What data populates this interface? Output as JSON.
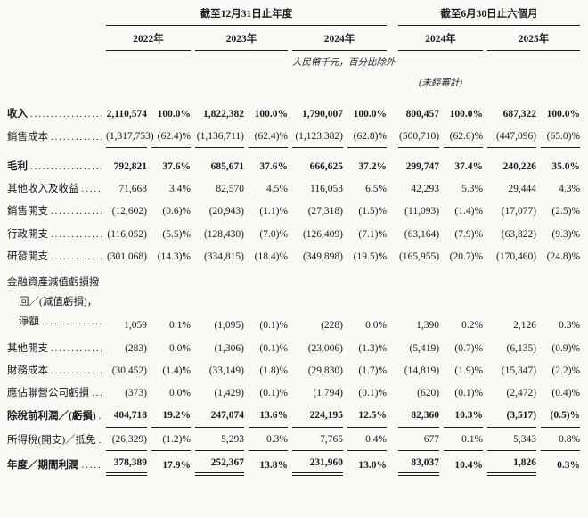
{
  "table": {
    "header": {
      "annual": {
        "title": "截至12月31日止年度",
        "years": [
          "2022年",
          "2023年",
          "2024年"
        ]
      },
      "interim": {
        "title": "截至6月30日止六個月",
        "years": [
          "2024年",
          "2025年"
        ]
      },
      "unit_note": "人民幣千元，百分比除外",
      "unaudited_note": "(未經審計)"
    },
    "column_keys": [
      "fy2022",
      "fy2022_pct",
      "fy2023",
      "fy2023_pct",
      "fy2024",
      "fy2024_pct",
      "h1_2024",
      "h1_2024_pct",
      "h1_2025",
      "h1_2025_pct"
    ],
    "rows": [
      {
        "id": "revenue",
        "label": "收入",
        "bold": true,
        "leader": true,
        "rule": "none",
        "values": [
          "2,110,574",
          "100.0%",
          "1,822,382",
          "100.0%",
          "1,790,007",
          "100.0%",
          "800,457",
          "100.0%",
          "687,322",
          "100.0%"
        ]
      },
      {
        "id": "cost-of-sales",
        "label": "銷售成本",
        "bold": false,
        "leader": true,
        "rule": "single",
        "values": [
          "(1,317,753)",
          "(62.4)%",
          "(1,136,711)",
          "(62.4)%",
          "(1,123,382)",
          "(62.8)%",
          "(500,710)",
          "(62.6)%",
          "(447,096)",
          "(65.0)%"
        ]
      },
      {
        "id": "gross-profit",
        "label": "毛利",
        "bold": true,
        "leader": true,
        "rule": "none",
        "space_before": true,
        "values": [
          "792,821",
          "37.6%",
          "685,671",
          "37.6%",
          "666,625",
          "37.2%",
          "299,747",
          "37.4%",
          "240,226",
          "35.0%"
        ]
      },
      {
        "id": "other-income-gains",
        "label": "其他收入及收益",
        "bold": false,
        "leader": true,
        "rule": "none",
        "values": [
          "71,668",
          "3.4%",
          "82,570",
          "4.5%",
          "116,053",
          "6.5%",
          "42,293",
          "5.3%",
          "29,444",
          "4.3%"
        ]
      },
      {
        "id": "selling-expenses",
        "label": "銷售開支",
        "bold": false,
        "leader": true,
        "rule": "none",
        "values": [
          "(12,602)",
          "(0.6)%",
          "(20,943)",
          "(1.1)%",
          "(27,318)",
          "(1.5)%",
          "(11,093)",
          "(1.4)%",
          "(17,077)",
          "(2.5)%"
        ]
      },
      {
        "id": "admin-expenses",
        "label": "行政開支",
        "bold": false,
        "leader": true,
        "rule": "none",
        "values": [
          "(116,052)",
          "(5.5)%",
          "(128,430)",
          "(7.0)%",
          "(126,409)",
          "(7.1)%",
          "(63,164)",
          "(7.9)%",
          "(63,822)",
          "(9.3)%"
        ]
      },
      {
        "id": "rd-expenses",
        "label": "研發開支",
        "bold": false,
        "leader": true,
        "rule": "none",
        "values": [
          "(301,068)",
          "(14.3)%",
          "(334,815)",
          "(18.4)%",
          "(349,898)",
          "(19.5)%",
          "(165,955)",
          "(20.7)%",
          "(170,460)",
          "(24.8)%"
        ]
      },
      {
        "id": "impairment-net",
        "label_lines": [
          "金融資產減值虧損撥",
          "回／(減值虧損)，",
          "淨額"
        ],
        "bold": false,
        "leader": true,
        "rule": "none",
        "values": [
          "1,059",
          "0.1%",
          "(1,095)",
          "(0.1)%",
          "(228)",
          "0.0%",
          "1,390",
          "0.2%",
          "2,126",
          "0.3%"
        ]
      },
      {
        "id": "other-expenses",
        "label": "其他開支",
        "bold": false,
        "leader": true,
        "rule": "none",
        "values": [
          "(283)",
          "0.0%",
          "(1,306)",
          "(0.1)%",
          "(23,006)",
          "(1.3)%",
          "(5,419)",
          "(0.7)%",
          "(6,135)",
          "(0.9)%"
        ]
      },
      {
        "id": "finance-costs",
        "label": "財務成本",
        "bold": false,
        "leader": true,
        "rule": "none",
        "values": [
          "(30,452)",
          "(1.4)%",
          "(33,149)",
          "(1.8)%",
          "(29,830)",
          "(1.7)%",
          "(14,819)",
          "(1.9)%",
          "(15,347)",
          "(2.2)%"
        ]
      },
      {
        "id": "share-of-losses-associates",
        "label": "應佔聯營公司虧損",
        "bold": false,
        "leader": true,
        "rule": "none",
        "values": [
          "(373)",
          "0.0%",
          "(1,429)",
          "(0.1)%",
          "(1,794)",
          "(0.1)%",
          "(620)",
          "(0.1)%",
          "(2,472)",
          "(0.4)%"
        ]
      },
      {
        "id": "profit-before-tax",
        "label": "除稅前利潤／(虧損)",
        "bold": true,
        "leader": true,
        "rule": "single",
        "values": [
          "404,718",
          "19.2%",
          "247,074",
          "13.6%",
          "224,195",
          "12.5%",
          "82,360",
          "10.3%",
          "(3,517)",
          "(0.5)%"
        ]
      },
      {
        "id": "income-tax",
        "label": "所得稅(開支)／抵免",
        "bold": false,
        "leader": true,
        "rule": "single",
        "values": [
          "(26,329)",
          "(1.2)%",
          "5,293",
          "0.3%",
          "7,765",
          "0.4%",
          "677",
          "0.1%",
          "5,343",
          "0.8%"
        ]
      },
      {
        "id": "profit-for-period",
        "label": "年度／期間利潤",
        "bold": true,
        "leader": true,
        "rule": "double_amounts",
        "values": [
          "378,389",
          "17.9%",
          "252,367",
          "13.8%",
          "231,960",
          "13.0%",
          "83,037",
          "10.4%",
          "1,826",
          "0.3%"
        ]
      }
    ]
  }
}
